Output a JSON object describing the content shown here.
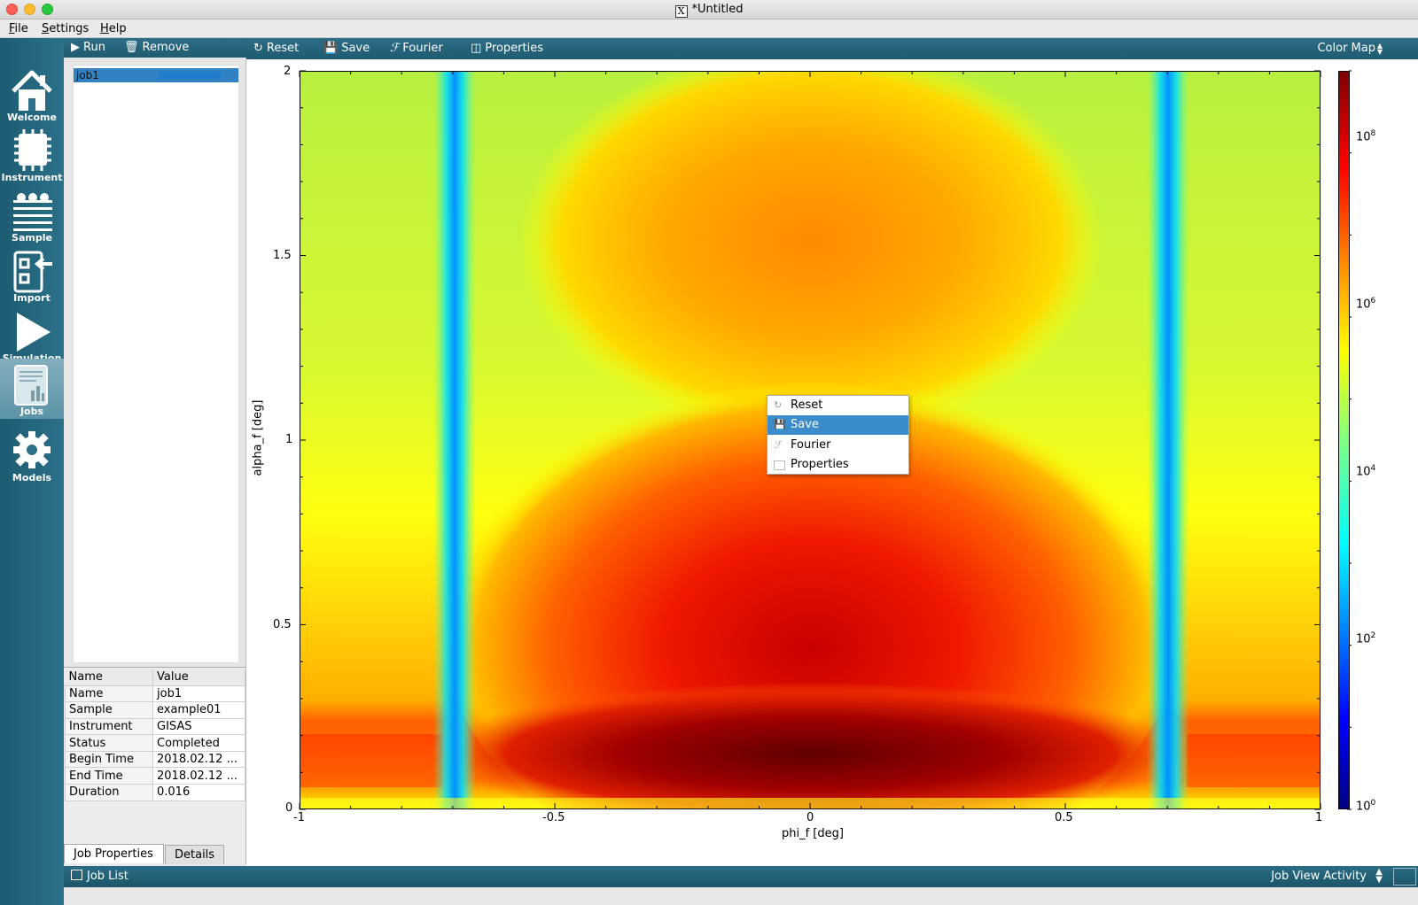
{
  "window": {
    "title": "*Untitled",
    "x_logo": "X"
  },
  "menu": {
    "file": "File",
    "settings": "Settings",
    "help": "Help"
  },
  "activities": [
    {
      "label": "Welcome",
      "icon": "home-icon"
    },
    {
      "label": "Instrument",
      "icon": "chip-icon"
    },
    {
      "label": "Sample",
      "icon": "sample-layers-icon"
    },
    {
      "label": "Import",
      "icon": "import-icon"
    },
    {
      "label": "Simulation",
      "icon": "play-icon"
    },
    {
      "label": "Jobs",
      "icon": "jobs-chart-icon",
      "active": true
    },
    {
      "label": "Models",
      "icon": "gear-icon"
    }
  ],
  "job_toolbar": {
    "run": "Run",
    "remove": "Remove"
  },
  "jobs": [
    {
      "name": "job1",
      "progress": 1.0
    }
  ],
  "properties": {
    "headers": [
      "Name",
      "Value"
    ],
    "rows": [
      [
        "Name",
        "job1"
      ],
      [
        "Sample",
        "example01"
      ],
      [
        "Instrument",
        "GISAS"
      ],
      [
        "Status",
        "Completed"
      ],
      [
        "Begin Time",
        "2018.02.12 ..."
      ],
      [
        "End Time",
        "2018.02.12 ..."
      ],
      [
        "Duration",
        "0.016"
      ]
    ]
  },
  "tabs": {
    "job_properties": "Job Properties",
    "details": "Details"
  },
  "plot_toolbar": {
    "reset": "Reset",
    "save": "Save",
    "fourier": "Fourier",
    "properties": "Properties",
    "view_mode": "Color Map"
  },
  "context_menu": {
    "items": [
      "Reset",
      "Save",
      "Fourier",
      "Properties"
    ],
    "selected": "Save"
  },
  "status_bar": {
    "left": "Job List",
    "right": "Job View Activity"
  },
  "chart_data": {
    "type": "heatmap",
    "xlabel": "phi_f [deg]",
    "ylabel": "alpha_f [deg]",
    "xlim": [
      -1,
      1
    ],
    "ylim": [
      0,
      2
    ],
    "x_ticks": [
      "-1",
      "-0.5",
      "0",
      "0.5",
      "1"
    ],
    "y_ticks": [
      "0",
      "0.5",
      "1",
      "1.5",
      "2"
    ],
    "colorbar": {
      "scale": "log",
      "range": [
        1,
        1000000000.0
      ],
      "ticks": [
        "10^0",
        "10^2",
        "10^4",
        "10^6",
        "10^8"
      ]
    },
    "colors": {
      "low": "#000080",
      "mid": "#ffff00",
      "high": "#800000"
    }
  }
}
